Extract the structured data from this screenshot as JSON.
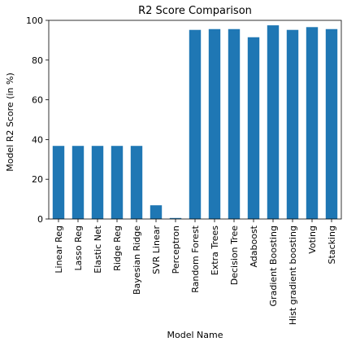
{
  "chart_data": {
    "type": "bar",
    "title": "R2 Score Comparison",
    "xlabel": "Model Name",
    "ylabel": "Model R2 Score (in %)",
    "ylim": [
      0,
      100
    ],
    "yticks": [
      0,
      20,
      40,
      60,
      80,
      100
    ],
    "bar_color": "#1f77b4",
    "categories": [
      "Linear Reg",
      "Lasso Reg",
      "Elastic Net",
      "Ridge Reg",
      "Bayesian Ridge",
      "SVR Linear",
      "Perceptron",
      "Random Forest",
      "Extra Trees",
      "Decision Tree",
      "Adaboost",
      "Gradient Boosting",
      "Hist gradient boosting",
      "Voting",
      "Stacking"
    ],
    "values": [
      36.8,
      36.8,
      36.8,
      36.8,
      36.8,
      6.9,
      0.5,
      95.2,
      95.6,
      95.6,
      91.5,
      97.5,
      95.2,
      96.6,
      95.6
    ],
    "grid": false,
    "legend": "none"
  }
}
